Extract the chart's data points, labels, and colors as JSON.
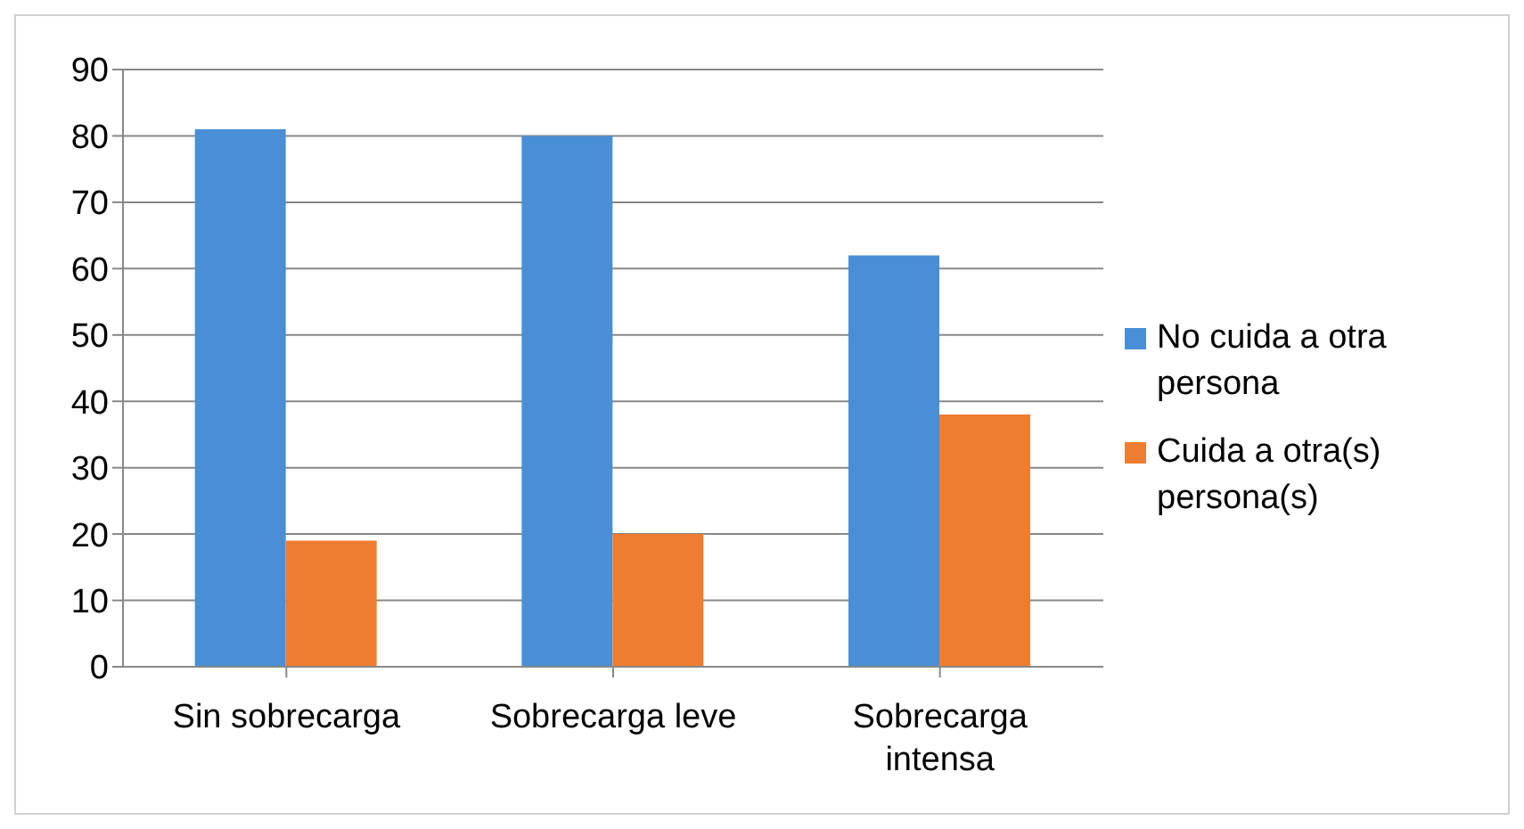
{
  "chart_data": {
    "type": "bar",
    "categories": [
      "Sin sobrecarga",
      "Sobrecarga leve",
      "Sobrecarga intensa"
    ],
    "series": [
      {
        "name": "No cuida a otra persona",
        "color": "#4a8fd6",
        "values": [
          81,
          80,
          62
        ]
      },
      {
        "name": "Cuida a otra(s) persona(s)",
        "color": "#ed7d31",
        "values": [
          19,
          20,
          38
        ]
      }
    ],
    "ylim": [
      0,
      90
    ],
    "yticks": [
      0,
      10,
      20,
      30,
      40,
      50,
      60,
      70,
      80,
      90
    ],
    "grid": "y",
    "legend": "right"
  }
}
